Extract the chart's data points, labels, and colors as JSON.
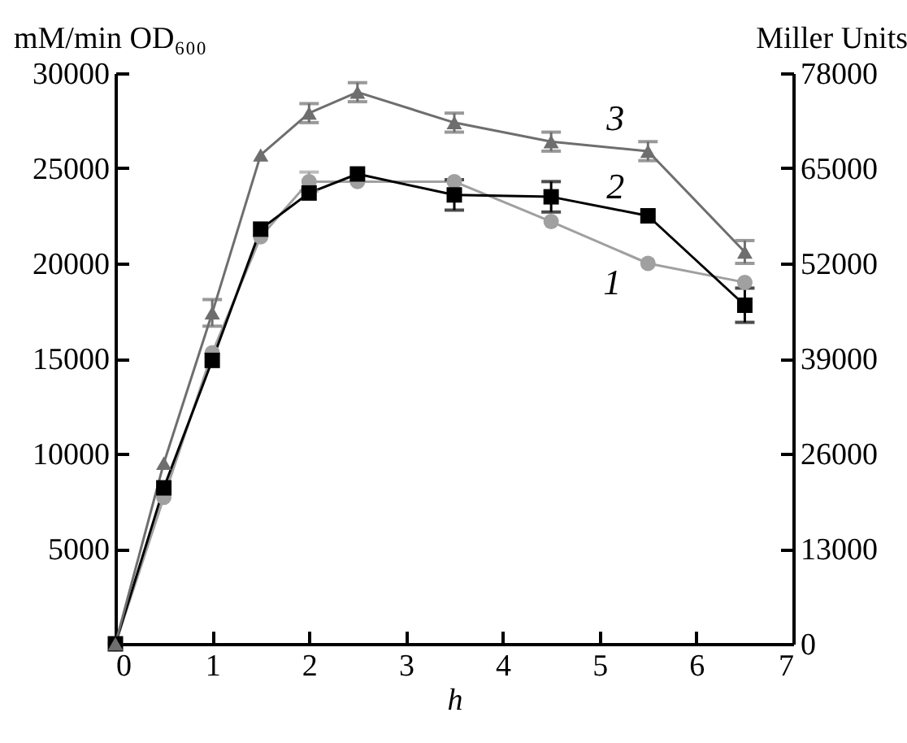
{
  "chart_data": {
    "type": "line",
    "xlabel": "h",
    "ylabel": "mM/min OD₆₀₀",
    "y2label": "Miller Units",
    "x": [
      0,
      0.5,
      1,
      1.5,
      2,
      2.5,
      3.5,
      4.5,
      5.5,
      6.5
    ],
    "series": [
      {
        "name": "1",
        "color": "#a0a0a0",
        "marker": "circle",
        "values": [
          0,
          7700,
          15300,
          21400,
          24300,
          24300,
          24300,
          22200,
          20000,
          19000
        ],
        "errors": [
          null,
          null,
          null,
          null,
          500,
          null,
          null,
          null,
          null,
          null
        ]
      },
      {
        "name": "2",
        "color": "#000000",
        "marker": "square",
        "values": [
          0,
          8200,
          14900,
          21800,
          23700,
          24700,
          23600,
          23500,
          22500,
          17800
        ],
        "errors": [
          null,
          null,
          null,
          null,
          null,
          null,
          800,
          800,
          null,
          900
        ]
      },
      {
        "name": "3",
        "color": "#6e6e6e",
        "marker": "triangle",
        "values": [
          0,
          9500,
          17400,
          25700,
          27900,
          29000,
          27400,
          26400,
          25900,
          20600
        ],
        "errors": [
          null,
          null,
          700,
          null,
          500,
          500,
          500,
          500,
          500,
          600
        ]
      }
    ],
    "xlim": [
      0,
      7
    ],
    "xticks": [
      0,
      1,
      2,
      3,
      4,
      5,
      6,
      7
    ],
    "ylim": [
      0,
      30000
    ],
    "yticks": [
      5000,
      10000,
      15000,
      20000,
      25000,
      30000
    ],
    "y2lim": [
      0,
      78000
    ],
    "y2ticks": [
      0,
      13000,
      26000,
      39000,
      52000,
      65000,
      78000
    ],
    "grid": false,
    "legend": false,
    "line_style": "solid"
  }
}
